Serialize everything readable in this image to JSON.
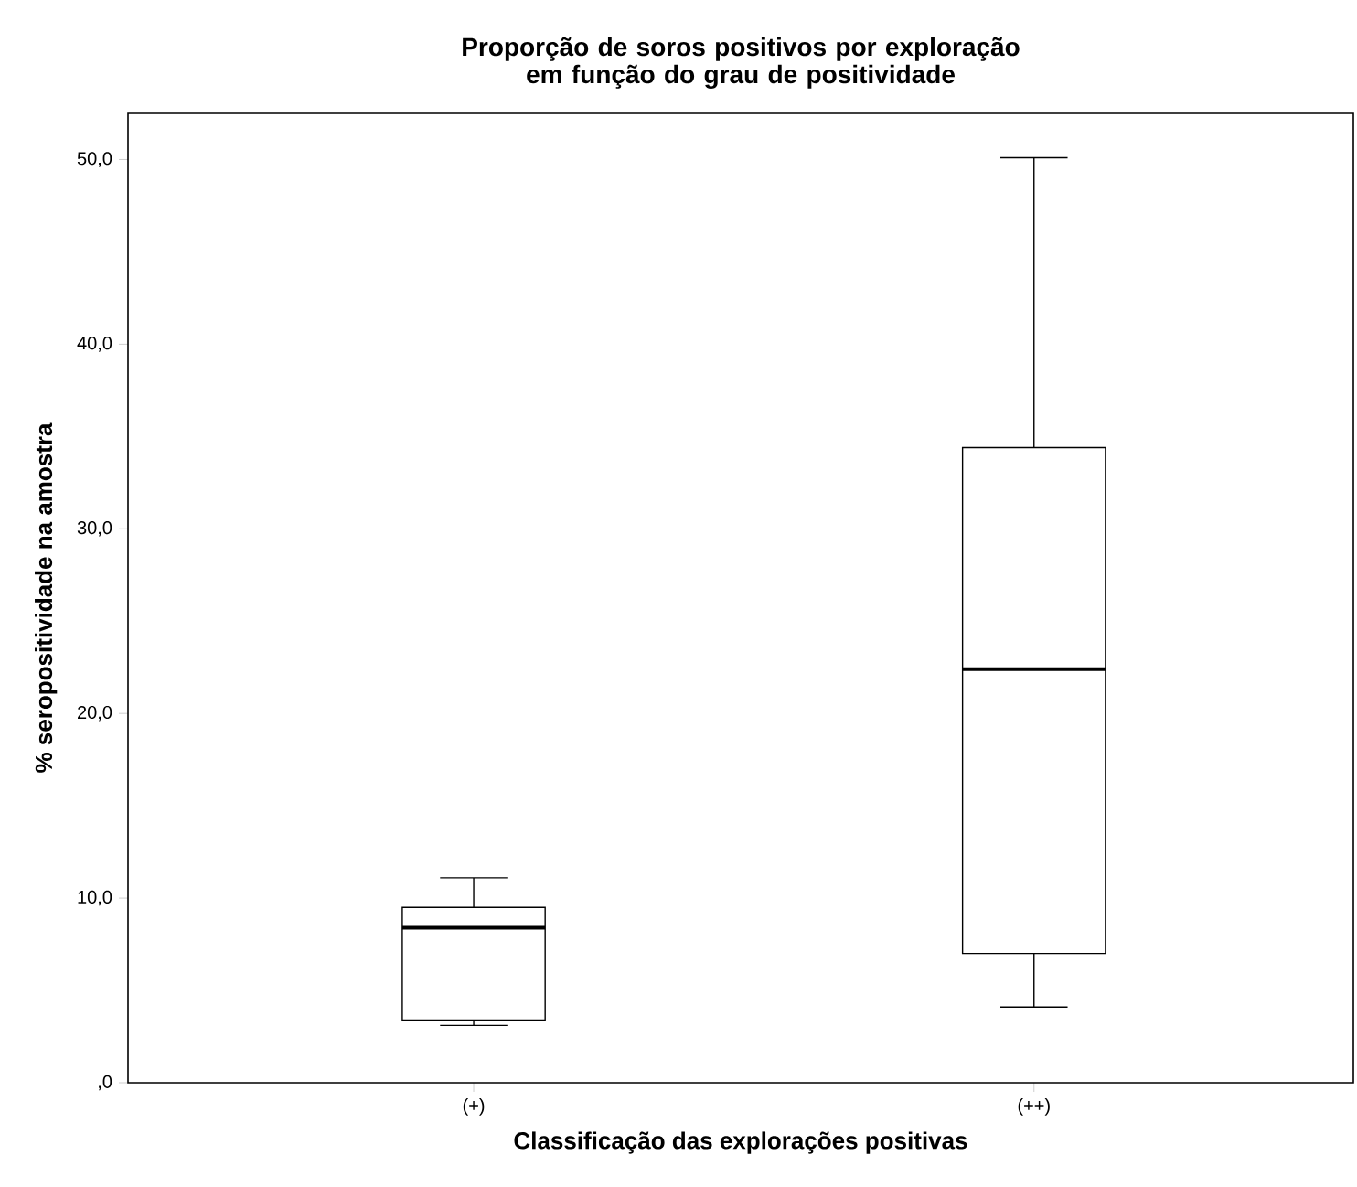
{
  "chart_data": {
    "type": "box",
    "title": "Proporção de soros positivos por exploração em função do grau de positividade",
    "xlabel": "Classificação das explorações positivas",
    "ylabel": "% seropositividade na amostra",
    "categories": [
      "(+)",
      "(++)"
    ],
    "boxes": [
      {
        "low": 3.1,
        "q1": 3.4,
        "median": 8.4,
        "q3": 9.5,
        "high": 11.1
      },
      {
        "low": 4.1,
        "q1": 7.0,
        "median": 22.4,
        "q3": 34.4,
        "high": 50.1
      }
    ],
    "ylim": [
      0,
      52.5
    ],
    "yticks": [
      {
        "value": 0,
        "label": ",0"
      },
      {
        "value": 10,
        "label": "10,0"
      },
      {
        "value": 20,
        "label": "20,0"
      },
      {
        "value": 30,
        "label": "30,0"
      },
      {
        "value": 40,
        "label": "40,0"
      },
      {
        "value": 50,
        "label": "50,0"
      }
    ]
  }
}
